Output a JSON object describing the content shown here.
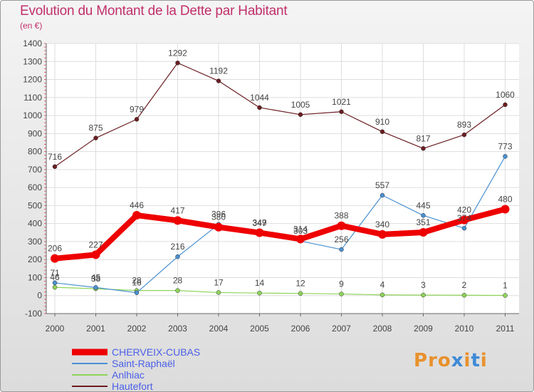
{
  "title": "Evolution du Montant de la Dette par Habitant",
  "subtitle": "(en €)",
  "logo_text": "Proxiti",
  "colors": {
    "title": "#c0306a",
    "legend_text": "#4a5fe6",
    "logo": [
      "#e8912c",
      "#e8912c",
      "#e8912c",
      "#3e8ad6",
      "#e8912c",
      "#3e8ad6",
      "#e8912c"
    ]
  },
  "chart_data": {
    "type": "line",
    "x": [
      "2000",
      "2001",
      "2002",
      "2003",
      "2004",
      "2005",
      "2006",
      "2007",
      "2008",
      "2009",
      "2010",
      "2011"
    ],
    "ylim": [
      -100,
      1400
    ],
    "yticks": [
      -100,
      0,
      100,
      200,
      300,
      400,
      500,
      600,
      700,
      800,
      900,
      1000,
      1100,
      1200,
      1300,
      1400
    ],
    "grid": true,
    "legend_position": "bottom-left",
    "series": [
      {
        "name": "CHERVEIX-CUBAS",
        "color": "#ee0000",
        "values": [
          206,
          227,
          446,
          417,
          380,
          349,
          314,
          388,
          340,
          351,
          420,
          480
        ]
      },
      {
        "name": "Saint-Raphaël",
        "color": "#4a90d0",
        "values": [
          71,
          45,
          16,
          216,
          396,
          347,
          303,
          256,
          557,
          445,
          374,
          773
        ]
      },
      {
        "name": "Anlhiac",
        "color": "#8fd45a",
        "values": [
          46,
          38,
          28,
          28,
          17,
          14,
          12,
          9,
          4,
          3,
          2,
          1
        ]
      },
      {
        "name": "Hautefort",
        "color": "#6a1e22",
        "values": [
          716,
          875,
          979,
          1292,
          1192,
          1044,
          1005,
          1021,
          910,
          817,
          893,
          1060
        ]
      }
    ]
  }
}
